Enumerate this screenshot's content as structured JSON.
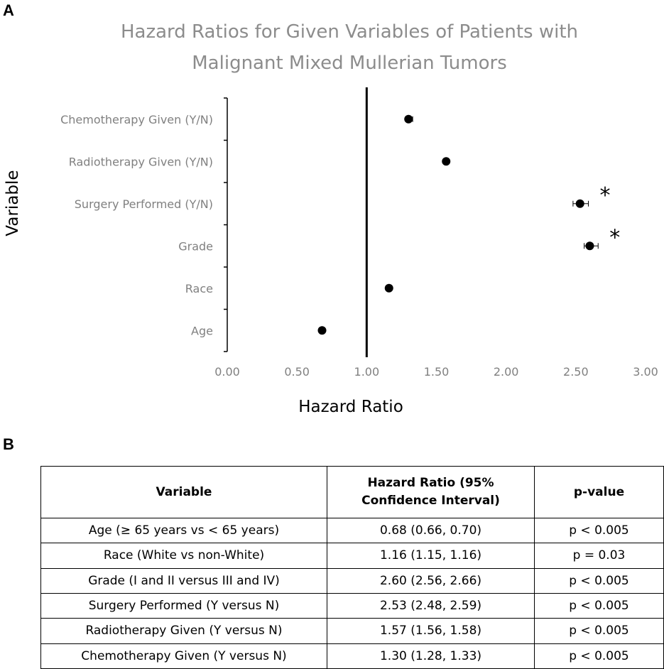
{
  "panel_labels": {
    "a": "A",
    "b": "B"
  },
  "chart_data": {
    "type": "scatter",
    "title_lines": [
      "Hazard Ratios for Given Variables of Patients with",
      "Malignant Mixed Mullerian Tumors"
    ],
    "xlabel": "Hazard Ratio",
    "ylabel": "Variable",
    "xlim": [
      0,
      3
    ],
    "xticks": [
      "0.00",
      "0.50",
      "1.00",
      "1.50",
      "2.00",
      "2.50",
      "3.00"
    ],
    "xtick_values": [
      0,
      0.5,
      1.0,
      1.5,
      2.0,
      2.5,
      3.0
    ],
    "reference_line_x": 1.0,
    "grid": false,
    "categories": [
      "Chemotherapy Given (Y/N)",
      "Radiotherapy Given (Y/N)",
      "Surgery Performed (Y/N)",
      "Grade",
      "Race",
      "Age"
    ],
    "values": [
      1.3,
      1.57,
      2.53,
      2.6,
      1.16,
      0.68
    ],
    "ci_low": [
      1.28,
      1.56,
      2.48,
      2.56,
      1.15,
      0.66
    ],
    "ci_high": [
      1.33,
      1.58,
      2.59,
      2.66,
      1.16,
      0.7
    ],
    "annotations": [
      "",
      "",
      "*",
      "*",
      "",
      ""
    ]
  },
  "table": {
    "headers": {
      "variable": "Variable",
      "hr_line1": "Hazard Ratio (95%",
      "hr_line2": "Confidence Interval)",
      "pvalue": "p-value"
    },
    "rows": [
      {
        "variable": "Age (≥ 65 years vs < 65 years)",
        "hr": "0.68 (0.66, 0.70)",
        "p": "p < 0.005"
      },
      {
        "variable": "Race (White vs non-White)",
        "hr": "1.16 (1.15, 1.16)",
        "p": "p = 0.03"
      },
      {
        "variable": "Grade (I and II versus III and IV)",
        "hr": "2.60 (2.56, 2.66)",
        "p": "p < 0.005"
      },
      {
        "variable": "Surgery Performed (Y versus N)",
        "hr": "2.53 (2.48, 2.59)",
        "p": "p < 0.005"
      },
      {
        "variable": "Radiotherapy Given (Y versus N)",
        "hr": "1.57 (1.56, 1.58)",
        "p": "p < 0.005"
      },
      {
        "variable": "Chemotherapy Given (Y versus N)",
        "hr": "1.30 (1.28, 1.33)",
        "p": "p < 0.005"
      }
    ]
  }
}
